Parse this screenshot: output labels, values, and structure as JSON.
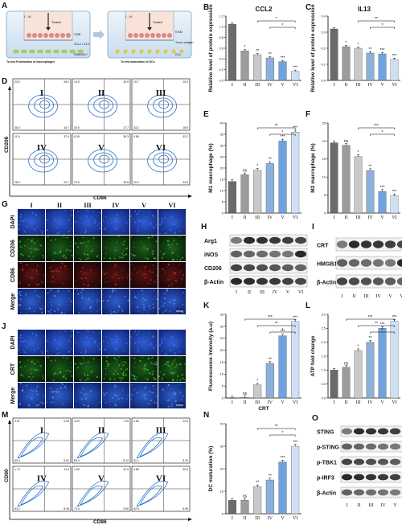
{
  "panel_letters": [
    "A",
    "B",
    "C",
    "D",
    "E",
    "F",
    "G",
    "H",
    "I",
    "J",
    "K",
    "L",
    "M",
    "N",
    "O"
  ],
  "groups": [
    "I",
    "II",
    "III",
    "IV",
    "V",
    "VI"
  ],
  "panelA": {
    "left_label": "I - VI",
    "left_caption": "To test Polarization of macrophages",
    "left_rows": [
      "143B",
      "CCL2 / IL13",
      "RAW264.7"
    ],
    "left_treated": "Treated",
    "right_label": "I - VI",
    "right_caption": "To test maturation of DCs",
    "right_rows": [
      "K7M2",
      "Tumor antigen",
      "DCs"
    ],
    "right_treated": "Treated"
  },
  "chart_data": [
    {
      "panel": "B",
      "type": "bar",
      "title": "CCL2",
      "ylabel": "Relative level of protein expression",
      "categories": [
        "I",
        "II",
        "III",
        "IV",
        "V",
        "VI"
      ],
      "values": [
        1.05,
        0.55,
        0.48,
        0.42,
        0.35,
        0.17
      ],
      "ylim": [
        0,
        1.2
      ],
      "yticks": [
        0.0,
        0.2,
        0.4,
        0.6,
        0.8,
        1.0,
        1.2
      ],
      "sig_labels": [
        "*",
        "**",
        "**",
        "***",
        "***"
      ],
      "brackets": [
        "*",
        "*"
      ]
    },
    {
      "panel": "C",
      "type": "bar",
      "title": "IL13",
      "ylabel": "Relative level of protein expression",
      "categories": [
        "I",
        "II",
        "III",
        "IV",
        "V",
        "VI"
      ],
      "values": [
        0.32,
        0.21,
        0.2,
        0.17,
        0.165,
        0.13
      ],
      "ylim": [
        0,
        0.4
      ],
      "yticks": [
        0.0,
        0.1,
        0.2,
        0.3,
        0.4
      ],
      "sig_labels": [
        "*",
        "*",
        "**",
        "***",
        "***"
      ],
      "brackets": [
        "**",
        "*"
      ]
    },
    {
      "panel": "E",
      "type": "bar",
      "title": "",
      "ylabel": "M1 macrophage (%)",
      "categories": [
        "I",
        "II",
        "III",
        "IV",
        "V",
        "VI"
      ],
      "values": [
        14,
        17,
        19,
        22,
        32,
        36
      ],
      "ylim": [
        0,
        40
      ],
      "yticks": [
        0,
        5,
        10,
        15,
        20,
        25,
        30,
        35,
        40
      ],
      "sig_labels": [
        "ns",
        "*",
        "**",
        "***",
        "***"
      ],
      "brackets": [
        "**",
        "*"
      ]
    },
    {
      "panel": "F",
      "type": "bar",
      "title": "",
      "ylabel": "M2 macrophage (%)",
      "categories": [
        "I",
        "II",
        "III",
        "IV",
        "V",
        "VI"
      ],
      "values": [
        19.5,
        18.8,
        15.7,
        11.8,
        6,
        4.8
      ],
      "ylim": [
        0,
        25
      ],
      "yticks": [
        0,
        5,
        10,
        15,
        20,
        25
      ],
      "sig_labels": [
        "ns",
        "*",
        "**",
        "***",
        "***"
      ],
      "brackets": [
        "***",
        "*"
      ]
    },
    {
      "panel": "K",
      "type": "bar",
      "title": "",
      "ylabel": "Fluorescence intensity (a.u)",
      "xlabel": "CRT",
      "categories": [
        "I",
        "II",
        "III",
        "IV",
        "V",
        "VI"
      ],
      "values": [
        0,
        0.2,
        5.5,
        14.5,
        26,
        32
      ],
      "ylim": [
        0,
        35
      ],
      "yticks": [
        0,
        5,
        10,
        15,
        20,
        25,
        30,
        35
      ],
      "sig_labels": [
        "ns",
        "*",
        "**",
        "***",
        "***"
      ],
      "brackets": [
        "***",
        "**",
        "*"
      ]
    },
    {
      "panel": "L",
      "type": "bar",
      "title": "",
      "ylabel": "ATP fold change",
      "categories": [
        "I",
        "II",
        "III",
        "IV",
        "V",
        "VI"
      ],
      "values": [
        1.0,
        1.1,
        1.7,
        2.0,
        2.5,
        2.75
      ],
      "ylim": [
        0,
        3
      ],
      "yticks": [
        0,
        0.5,
        1.0,
        1.5,
        2.0,
        2.5,
        3.0
      ],
      "sig_labels": [
        "ns",
        "*",
        "**",
        "***",
        "***"
      ],
      "brackets": [
        "***",
        "**",
        "*"
      ]
    },
    {
      "panel": "N",
      "type": "bar",
      "title": "",
      "ylabel": "DC maturation (%)",
      "categories": [
        "I",
        "II",
        "III",
        "IV",
        "V",
        "VI"
      ],
      "values": [
        6,
        6,
        12,
        15,
        23,
        30
      ],
      "ylim": [
        0,
        40
      ],
      "yticks": [
        0,
        10,
        20,
        30,
        40
      ],
      "sig_labels": [
        "ns",
        "**",
        "**",
        "***",
        "***"
      ],
      "brackets": [
        "**",
        "*"
      ]
    }
  ],
  "panelD": {
    "ylabel": "CD206",
    "xlabel": "CD86",
    "plots": [
      {
        "label": "I",
        "q": [
          "20.2",
          "28.2",
          "36.0",
          "15.7"
        ]
      },
      {
        "label": "II",
        "q": [
          "19.5",
          "33.9",
          "30.5",
          "17.7"
        ]
      },
      {
        "label": "III",
        "q": [
          "15.7",
          "20.3",
          "33.2",
          "18.9"
        ]
      },
      {
        "label": "IV",
        "q": [
          "11.6",
          "37.0",
          "28.2",
          "22.7"
        ]
      },
      {
        "label": "V",
        "q": [
          "6.39",
          "38.3",
          "22.5",
          "33.8"
        ]
      },
      {
        "label": "VI",
        "q": [
          "4.89",
          "42.2",
          "20.2",
          "34.8"
        ]
      }
    ]
  },
  "panelG": {
    "rows": [
      "DAPI",
      "CD206",
      "CD86",
      "Merge"
    ],
    "scale": "50 μm"
  },
  "panelJ": {
    "rows": [
      "DAPI",
      "CRT",
      "Merge"
    ],
    "scale": "20 μm"
  },
  "panelH": {
    "proteins": [
      "Arg1",
      "iNOS",
      "CD206",
      "β-Actin"
    ]
  },
  "panelI": {
    "proteins": [
      "CRT",
      "HMGB1",
      "β-Actin"
    ]
  },
  "panelO": {
    "proteins": [
      "STING",
      "p-STING",
      "p-TBK1",
      "p-IRF3",
      "β-Actin"
    ]
  },
  "panelM": {
    "ylabel": "CD80",
    "xlabel": "CD86",
    "plots": [
      {
        "label": "I",
        "q": [
          "3.57",
          "0.54",
          "89.4",
          "6.51"
        ]
      },
      {
        "label": "II",
        "q": [
          "4.20",
          "7.20",
          "80.4",
          "8.12"
        ]
      },
      {
        "label": "III",
        "q": [
          "2.65",
          "12.5",
          "81.1",
          "3.29"
        ]
      },
      {
        "label": "IV",
        "q": [
          "1.70",
          "14.9",
          "83.2",
          "8.26"
        ]
      },
      {
        "label": "V",
        "q": [
          "1.55",
          "22.9",
          "72.4",
          "3.50"
        ]
      },
      {
        "label": "VI",
        "q": [
          "0.86",
          "30.9",
          "62.5",
          "5.95"
        ]
      }
    ]
  },
  "colors": {
    "bar_seq": [
      "#6b6b6b",
      "#9c9c9c",
      "#c9c9c9",
      "#8db0da",
      "#6ea3e0",
      "#cfe0f5"
    ],
    "flow": "#2a72c8",
    "dapi": "#1e3fb0",
    "green": "#2d8a2a",
    "red": "#8a2020",
    "merge": "#2a56b8"
  }
}
